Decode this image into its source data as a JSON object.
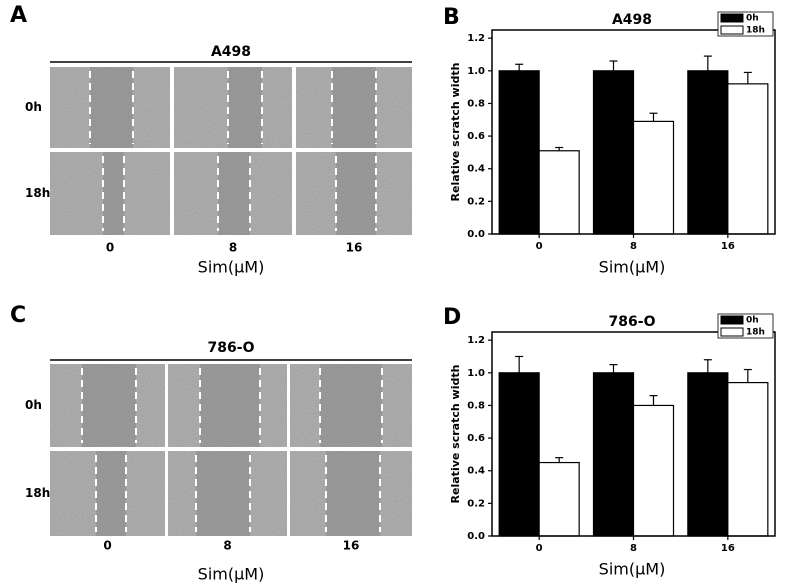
{
  "panels": [
    {
      "label": "A",
      "title": "A498",
      "rows": [
        "0h",
        "18h"
      ],
      "columns": [
        "0",
        "8",
        "16"
      ],
      "xlabel": "Sim(μM)"
    },
    {
      "label": "C",
      "title": "786-O",
      "rows": [
        "0h",
        "18h"
      ],
      "columns": [
        "0",
        "8",
        "16"
      ],
      "xlabel": "Sim(μM)"
    }
  ],
  "chart_data": [
    {
      "type": "bar",
      "label": "B",
      "title": "A498",
      "xlabel": "Sim(μM)",
      "ylabel": "Relative scratch width",
      "categories": [
        "0",
        "8",
        "16"
      ],
      "series": [
        {
          "name": "0h",
          "color": "#000000",
          "values": [
            1.0,
            1.0,
            1.0
          ],
          "errors": [
            0.04,
            0.06,
            0.09
          ]
        },
        {
          "name": "18h",
          "color": "#ffffff",
          "values": [
            0.51,
            0.69,
            0.92
          ],
          "errors": [
            0.02,
            0.05,
            0.07
          ]
        }
      ],
      "ylim": [
        0,
        1.25
      ],
      "yticks": [
        {
          "value": 0,
          "label": "0.0"
        },
        {
          "value": 0.2,
          "label": "0.2"
        },
        {
          "value": 0.4,
          "label": "0.4"
        },
        {
          "value": 0.6,
          "label": "0.6"
        },
        {
          "value": 0.8,
          "label": "0.8"
        },
        {
          "value": 1.0,
          "label": "1.0"
        },
        {
          "value": 1.2,
          "label": "1.2"
        }
      ],
      "legend": "top-right"
    },
    {
      "type": "bar",
      "label": "D",
      "title": "786-O",
      "xlabel": "Sim(μM)",
      "ylabel": "Relative scratch width",
      "categories": [
        "0",
        "8",
        "16"
      ],
      "series": [
        {
          "name": "0h",
          "color": "#000000",
          "values": [
            1.0,
            1.0,
            1.0
          ],
          "errors": [
            0.1,
            0.05,
            0.08
          ]
        },
        {
          "name": "18h",
          "color": "#ffffff",
          "values": [
            0.45,
            0.8,
            0.94
          ],
          "errors": [
            0.03,
            0.06,
            0.08
          ]
        }
      ],
      "ylim": [
        0,
        1.25
      ],
      "yticks": [
        {
          "value": 0,
          "label": "0.0"
        },
        {
          "value": 0.2,
          "label": "0.2"
        },
        {
          "value": 0.4,
          "label": "0.4"
        },
        {
          "value": 0.6,
          "label": "0.6"
        },
        {
          "value": 0.8,
          "label": "0.8"
        },
        {
          "value": 1.0,
          "label": "1.0"
        },
        {
          "value": 1.2,
          "label": "1.2"
        }
      ],
      "legend": "top-right"
    }
  ]
}
